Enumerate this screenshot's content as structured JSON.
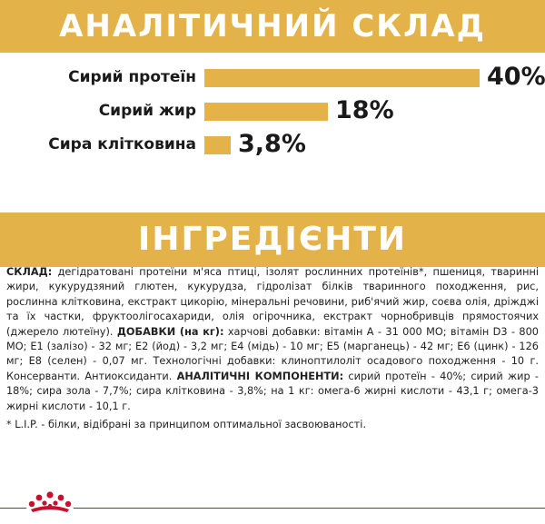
{
  "analysis": {
    "title": "АНАЛІТИЧНИЙ СКЛАД",
    "rows": [
      {
        "label": "Сирий протеїн",
        "value_text": "40%",
        "value": 40
      },
      {
        "label": "Сирий жир",
        "value_text": "18%",
        "value": 18
      },
      {
        "label": "Сира клітковина",
        "value_text": "3,8%",
        "value": 3.8
      }
    ]
  },
  "ingredients": {
    "title": "ІНГРЕДІЄНТИ",
    "composition_label": "СКЛАД:",
    "composition_text": " дегідратовані протеїни м'яса птиці, ізолят рослинних протеїнів*, пшениця, тваринні жири, кукурудзяний глютен, кукурудза, гідролізат білків тваринного походження, рис, рослинна клітковина, екстракт цикорію, мінеральні речовини, риб'ячий жир, соєва олія, дріжджі та їх частки, фруктоолігосахариди, олія огірочника, екстракт чорнобривців прямостоячих (джерело лютеїну). ",
    "additives_label": "ДОБАВКИ (на кг):",
    "additives_text": " харчові добавки: вітамін А - 31 000 МО; вітамін D3 - 800 МО; E1 (залізо) - 32 мг; E2 (йод) - 3,2 мг; E4 (мідь) - 10 мг; E5 (марганець) - 42 мг; E6 (цинк) - 126 мг; E8 (селен) - 0,07 мг. Технологічні добавки: клиноптилоліт осадового походження - 10 г. Консерванти. Антиоксиданти. ",
    "components_label": "АНАЛІТИЧНІ КОМПОНЕНТИ:",
    "components_text": " сирий протеїн - 40%; сирий жир - 18%; сира зола - 7,7%; сира клітковина - 3,8%; на 1 кг: омега-6 жирні кислоти - 43,1 г; омега-3 жирні кислоти - 10,1 г.",
    "footnote": "* L.I.P. - білки, відібрані за принципом оптимальної засвоюваності."
  },
  "colors": {
    "banner": "#e3b34a",
    "bar": "#e3b34a",
    "brand_red": "#c8102e"
  },
  "icons": {
    "logo": "royal-canin-crown-icon"
  }
}
